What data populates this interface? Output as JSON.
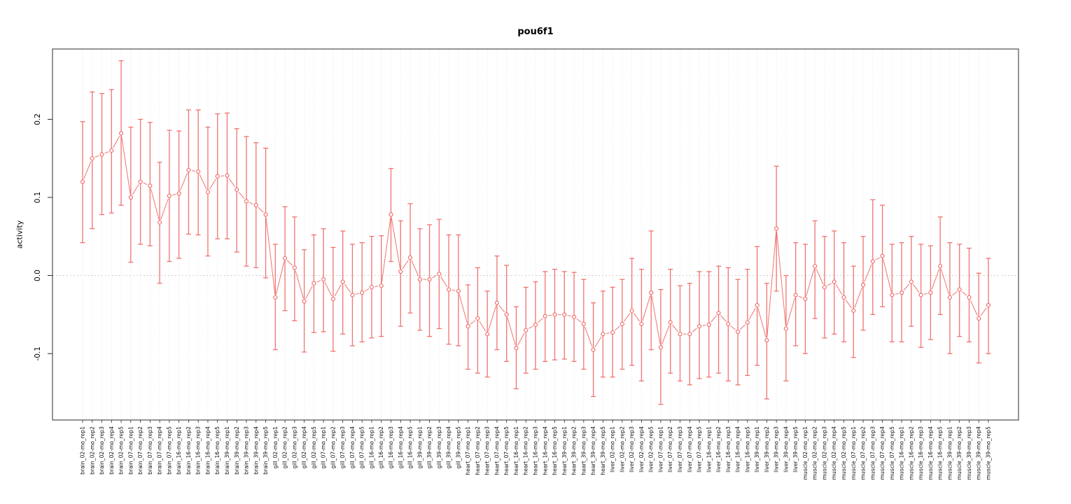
{
  "chart_data": {
    "type": "line",
    "subtype": "points-with-error-bars",
    "title": "pou6f1",
    "ylabel": "activity",
    "xlabel": "",
    "yticks": [
      -0.1,
      0.0,
      0.1,
      0.2
    ],
    "ylim": [
      -0.185,
      0.29
    ],
    "grid": "vertical-dotted-per-category",
    "legend": "none",
    "series_color": "#ef7370",
    "categories": [
      "brain_02-mo_rep1",
      "brain_02-mo_rep2",
      "brain_02-mo_rep3",
      "brain_02-mo_rep4",
      "brain_02-mo_rep5",
      "brain_07-mo_rep1",
      "brain_07-mo_rep2",
      "brain_07-mo_rep3",
      "brain_07-mo_rep4",
      "brain_07-mo_rep5",
      "brain_16-mo_rep1",
      "brain_16-mo_rep2",
      "brain_16-mo_rep3",
      "brain_16-mo_rep4",
      "brain_16-mo_rep5",
      "brain_39-mo_rep1",
      "brain_39-mo_rep2",
      "brain_39-mo_rep3",
      "brain_39-mo_rep4",
      "brain_39-mo_rep5",
      "gill_02-mo_rep1",
      "gill_02-mo_rep2",
      "gill_02-mo_rep3",
      "gill_02-mo_rep4",
      "gill_02-mo_rep5",
      "gill_07-mo_rep1",
      "gill_07-mo_rep2",
      "gill_07-mo_rep3",
      "gill_07-mo_rep4",
      "gill_07-mo_rep5",
      "gill_16-mo_rep1",
      "gill_16-mo_rep2",
      "gill_16-mo_rep3",
      "gill_16-mo_rep4",
      "gill_16-mo_rep5",
      "gill_39-mo_rep1",
      "gill_39-mo_rep2",
      "gill_39-mo_rep3",
      "gill_39-mo_rep4",
      "gill_39-mo_rep5",
      "heart_07-mo_rep1",
      "heart_07-mo_rep2",
      "heart_07-mo_rep3",
      "heart_07-mo_rep4",
      "heart_07-mo_rep5",
      "heart_16-mo_rep1",
      "heart_16-mo_rep2",
      "heart_16-mo_rep3",
      "heart_16-mo_rep4",
      "heart_16-mo_rep5",
      "heart_39-mo_rep1",
      "heart_39-mo_rep2",
      "heart_39-mo_rep3",
      "heart_39-mo_rep4",
      "heart_39-mo_rep5",
      "liver_02-mo_rep1",
      "liver_02-mo_rep2",
      "liver_02-mo_rep3",
      "liver_02-mo_rep4",
      "liver_02-mo_rep5",
      "liver_07-mo_rep1",
      "liver_07-mo_rep2",
      "liver_07-mo_rep3",
      "liver_07-mo_rep4",
      "liver_07-mo_rep5",
      "liver_16-mo_rep1",
      "liver_16-mo_rep2",
      "liver_16-mo_rep3",
      "liver_16-mo_rep4",
      "liver_16-mo_rep5",
      "liver_39-mo_rep1",
      "liver_39-mo_rep2",
      "liver_39-mo_rep3",
      "liver_39-mo_rep4",
      "liver_39-mo_rep5",
      "muscle_02-mo_rep1",
      "muscle_02-mo_rep2",
      "muscle_02-mo_rep3",
      "muscle_02-mo_rep4",
      "muscle_02-mo_rep5",
      "muscle_07-mo_rep1",
      "muscle_07-mo_rep2",
      "muscle_07-mo_rep3",
      "muscle_07-mo_rep4",
      "muscle_07-mo_rep5",
      "muscle_16-mo_rep1",
      "muscle_16-mo_rep2",
      "muscle_16-mo_rep3",
      "muscle_16-mo_rep4",
      "muscle_16-mo_rep5",
      "muscle_39-mo_rep1",
      "muscle_39-mo_rep2",
      "muscle_39-mo_rep3",
      "muscle_39-mo_rep4",
      "muscle_39-mo_rep5"
    ],
    "series": [
      {
        "name": "pou6f1 activity",
        "values": [
          0.12,
          0.15,
          0.155,
          0.16,
          0.182,
          0.1,
          0.12,
          0.115,
          0.068,
          0.102,
          0.105,
          0.135,
          0.133,
          0.107,
          0.127,
          0.128,
          0.11,
          0.095,
          0.09,
          0.078,
          -0.028,
          0.022,
          0.01,
          -0.033,
          -0.01,
          -0.005,
          -0.03,
          -0.008,
          -0.025,
          -0.022,
          -0.015,
          -0.013,
          0.078,
          0.005,
          0.023,
          -0.005,
          -0.005,
          0.002,
          -0.018,
          -0.02,
          -0.065,
          -0.055,
          -0.075,
          -0.035,
          -0.05,
          -0.093,
          -0.07,
          -0.063,
          -0.052,
          -0.05,
          -0.05,
          -0.053,
          -0.062,
          -0.095,
          -0.075,
          -0.073,
          -0.062,
          -0.045,
          -0.062,
          -0.022,
          -0.092,
          -0.06,
          -0.075,
          -0.075,
          -0.065,
          -0.063,
          -0.048,
          -0.062,
          -0.072,
          -0.06,
          -0.038,
          -0.083,
          0.06,
          -0.068,
          -0.025,
          -0.03,
          0.012,
          -0.015,
          -0.008,
          -0.028,
          -0.045,
          -0.012,
          0.018,
          0.025,
          -0.025,
          -0.022,
          -0.008,
          -0.025,
          -0.022,
          0.012,
          -0.028,
          -0.018,
          -0.028,
          -0.055,
          -0.038
        ],
        "ci_low": [
          0.042,
          0.06,
          0.078,
          0.08,
          0.09,
          0.017,
          0.04,
          0.038,
          -0.01,
          0.018,
          0.022,
          0.053,
          0.052,
          0.025,
          0.047,
          0.047,
          0.03,
          0.012,
          0.01,
          -0.003,
          -0.095,
          -0.045,
          -0.058,
          -0.098,
          -0.073,
          -0.072,
          -0.097,
          -0.075,
          -0.09,
          -0.085,
          -0.08,
          -0.078,
          0.018,
          -0.065,
          -0.048,
          -0.07,
          -0.078,
          -0.068,
          -0.088,
          -0.09,
          -0.12,
          -0.125,
          -0.13,
          -0.095,
          -0.11,
          -0.145,
          -0.125,
          -0.12,
          -0.11,
          -0.108,
          -0.107,
          -0.11,
          -0.12,
          -0.155,
          -0.13,
          -0.13,
          -0.12,
          -0.115,
          -0.135,
          -0.095,
          -0.165,
          -0.125,
          -0.135,
          -0.14,
          -0.132,
          -0.13,
          -0.125,
          -0.135,
          -0.14,
          -0.128,
          -0.115,
          -0.158,
          -0.02,
          -0.135,
          -0.09,
          -0.1,
          -0.055,
          -0.08,
          -0.075,
          -0.085,
          -0.105,
          -0.07,
          -0.05,
          -0.04,
          -0.085,
          -0.085,
          -0.065,
          -0.092,
          -0.082,
          -0.05,
          -0.1,
          -0.078,
          -0.085,
          -0.112,
          -0.1
        ],
        "ci_high": [
          0.197,
          0.235,
          0.233,
          0.238,
          0.275,
          0.19,
          0.2,
          0.196,
          0.145,
          0.186,
          0.185,
          0.212,
          0.212,
          0.19,
          0.207,
          0.208,
          0.188,
          0.178,
          0.17,
          0.163,
          0.04,
          0.088,
          0.075,
          0.033,
          0.052,
          0.06,
          0.036,
          0.057,
          0.04,
          0.042,
          0.05,
          0.051,
          0.137,
          0.07,
          0.092,
          0.06,
          0.065,
          0.072,
          0.052,
          0.052,
          -0.012,
          0.01,
          -0.02,
          0.025,
          0.013,
          -0.04,
          -0.015,
          -0.008,
          0.005,
          0.008,
          0.005,
          0.004,
          -0.005,
          -0.035,
          -0.02,
          -0.015,
          -0.005,
          0.022,
          0.008,
          0.057,
          -0.018,
          0.008,
          -0.013,
          -0.01,
          0.005,
          0.005,
          0.012,
          0.01,
          -0.005,
          0.008,
          0.037,
          -0.01,
          0.14,
          0.0,
          0.042,
          0.04,
          0.07,
          0.05,
          0.057,
          0.042,
          0.012,
          0.05,
          0.097,
          0.09,
          0.04,
          0.042,
          0.05,
          0.04,
          0.038,
          0.075,
          0.042,
          0.04,
          0.035,
          0.003,
          0.022
        ]
      }
    ]
  }
}
